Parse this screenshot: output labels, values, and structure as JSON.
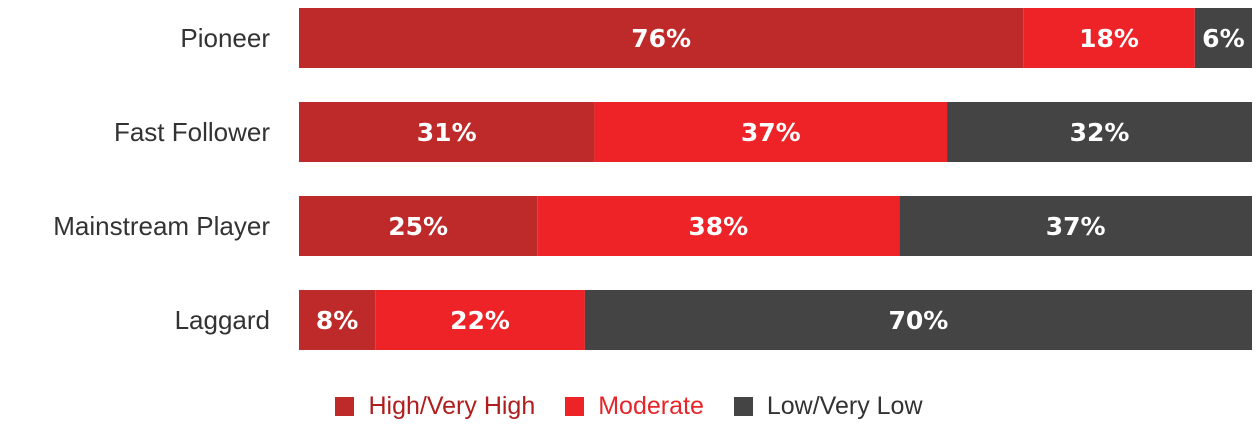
{
  "chart_data": {
    "type": "bar",
    "orientation": "horizontal",
    "stacked": true,
    "categories": [
      "Pioneer",
      "Fast Follower",
      "Mainstream Player",
      "Laggard"
    ],
    "series": [
      {
        "name": "High/Very High",
        "color": "#be2a2a",
        "legend_text_color": "#b01d1d",
        "values": [
          76,
          31,
          25,
          8
        ]
      },
      {
        "name": "Moderate",
        "color": "#ed2328",
        "legend_text_color": "#e5252a",
        "values": [
          18,
          37,
          38,
          22
        ]
      },
      {
        "name": "Low/Very Low",
        "color": "#444444",
        "legend_text_color": "#333333",
        "values": [
          6,
          32,
          37,
          70
        ]
      }
    ],
    "value_suffix": "%",
    "xlim": [
      0,
      100
    ],
    "grid": false,
    "legend_position": "bottom-center",
    "title": "",
    "xlabel": "",
    "ylabel": ""
  }
}
